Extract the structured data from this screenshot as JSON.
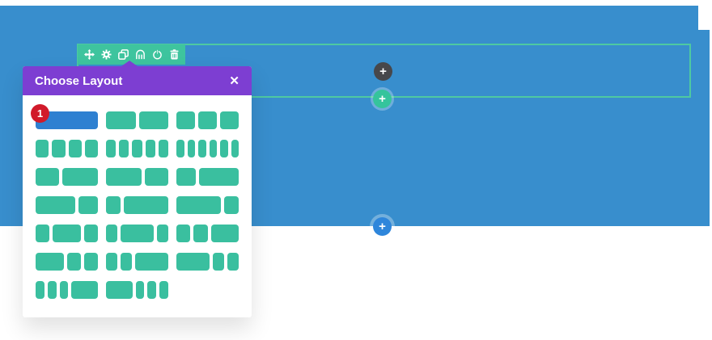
{
  "page": {
    "section_background": "#388ecd",
    "page_background": "#ffffff"
  },
  "row_toolbar": {
    "background": "#3ec49e",
    "icons": [
      {
        "name": "move-icon"
      },
      {
        "name": "settings-gear-icon"
      },
      {
        "name": "duplicate-icon"
      },
      {
        "name": "save-to-library-icon"
      },
      {
        "name": "disable-power-icon"
      },
      {
        "name": "trash-icon"
      }
    ]
  },
  "row_outline": {
    "border_color": "#4ec9a1"
  },
  "add_buttons": {
    "module_plus": "+",
    "row_plus": "+",
    "section_plus": "+",
    "module_color": "#47474b",
    "row_color": "#35c49c",
    "section_color": "#2e86db"
  },
  "modal": {
    "title": "Choose Layout",
    "close": "✕",
    "header_color": "#7d3ed2",
    "selected_badge": "1",
    "badge_color": "#d11a2a",
    "block_color": "#3abf9f",
    "selected_block_color": "#2e80d1",
    "layouts": [
      {
        "columns": "1",
        "ratios": [
          1
        ],
        "selected": true
      },
      {
        "columns": "1/2 1/2",
        "ratios": [
          1,
          1
        ],
        "selected": false
      },
      {
        "columns": "1/3 1/3 1/3",
        "ratios": [
          1,
          1,
          1
        ],
        "selected": false
      },
      {
        "columns": "1/4 1/4 1/4 1/4",
        "ratios": [
          1,
          1,
          1,
          1
        ],
        "selected": false
      },
      {
        "columns": "1/5 1/5 1/5 1/5 1/5",
        "ratios": [
          1,
          1,
          1,
          1,
          1
        ],
        "selected": false
      },
      {
        "columns": "1/6 1/6 1/6 1/6 1/6 1/6",
        "ratios": [
          1,
          1,
          1,
          1,
          1,
          1
        ],
        "selected": false
      },
      {
        "columns": "2/5 3/5",
        "ratios": [
          2,
          3
        ],
        "selected": false
      },
      {
        "columns": "3/5 2/5",
        "ratios": [
          3,
          2
        ],
        "selected": false
      },
      {
        "columns": "1/3 2/3",
        "ratios": [
          1,
          2
        ],
        "selected": false
      },
      {
        "columns": "2/3 1/3",
        "ratios": [
          2,
          1
        ],
        "selected": false
      },
      {
        "columns": "1/4 3/4",
        "ratios": [
          1,
          3
        ],
        "selected": false
      },
      {
        "columns": "3/4 1/4",
        "ratios": [
          3,
          1
        ],
        "selected": false
      },
      {
        "columns": "1/4 1/2 1/4",
        "ratios": [
          1,
          2,
          1
        ],
        "selected": false
      },
      {
        "columns": "1/5 3/5 1/5",
        "ratios": [
          1,
          3,
          1
        ],
        "selected": false
      },
      {
        "columns": "1/4 1/4 1/2",
        "ratios": [
          1,
          1,
          2
        ],
        "selected": false
      },
      {
        "columns": "1/2 1/4 1/4",
        "ratios": [
          2,
          1,
          1
        ],
        "selected": false
      },
      {
        "columns": "1/5 1/5 3/5",
        "ratios": [
          1,
          1,
          3
        ],
        "selected": false
      },
      {
        "columns": "3/5 1/5 1/5",
        "ratios": [
          3,
          1,
          1
        ],
        "selected": false
      },
      {
        "columns": "1/6 1/6 1/6 1/2",
        "ratios": [
          1,
          1,
          1,
          3
        ],
        "selected": false
      },
      {
        "columns": "1/2 1/6 1/6 1/6",
        "ratios": [
          3,
          1,
          1,
          1
        ],
        "selected": false
      }
    ]
  }
}
